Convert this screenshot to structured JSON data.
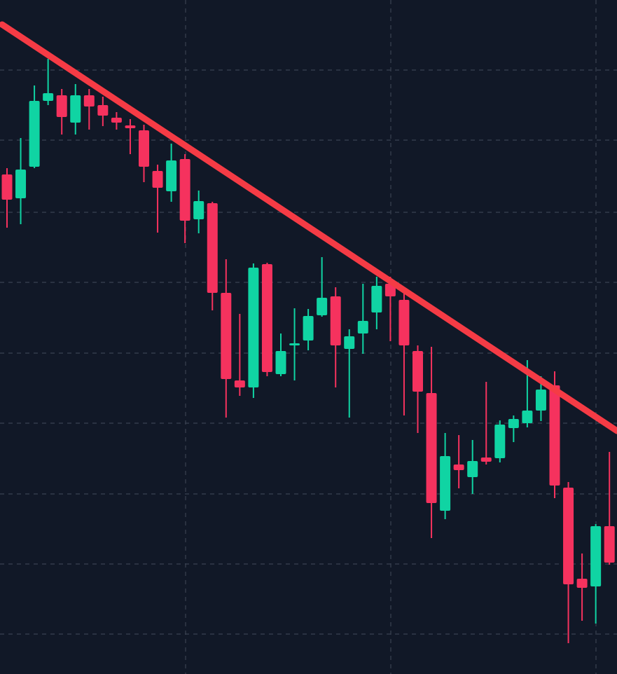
{
  "chart_data": {
    "type": "candlestick",
    "categories": [
      null,
      null,
      null,
      null,
      null,
      null,
      null,
      null,
      null,
      null,
      null,
      null,
      null,
      null,
      null,
      null,
      null,
      null,
      null,
      null,
      null,
      null,
      null,
      null,
      null,
      null,
      null,
      null,
      null,
      null,
      null,
      null,
      null,
      null,
      null,
      null,
      null,
      null,
      null,
      null,
      null,
      null,
      null,
      null,
      null
    ],
    "open": [
      713,
      679,
      724,
      818,
      826,
      787,
      826,
      812,
      794,
      783,
      776,
      718,
      689,
      735,
      649,
      672,
      544,
      419,
      409,
      585,
      428,
      469,
      476,
      512,
      539,
      464,
      486,
      516,
      557,
      534,
      461,
      401,
      233,
      299,
      281,
      309,
      308,
      351,
      358,
      376,
      412,
      266,
      136,
      125,
      211
    ],
    "high": [
      722,
      765,
      840,
      878,
      835,
      842,
      835,
      824,
      802,
      792,
      784,
      727,
      757,
      742,
      690,
      674,
      592,
      514,
      586,
      587,
      486,
      522,
      521,
      595,
      552,
      492,
      557,
      567,
      567,
      544,
      469,
      467,
      344,
      341,
      334,
      417,
      362,
      369,
      448,
      425,
      432,
      274,
      172,
      214,
      317
    ],
    "low": [
      637,
      642,
      722,
      812,
      770,
      770,
      777,
      782,
      777,
      742,
      702,
      630,
      674,
      615,
      629,
      519,
      366,
      397,
      394,
      425,
      425,
      419,
      462,
      510,
      409,
      366,
      457,
      492,
      475,
      369,
      344,
      194,
      221,
      265,
      257,
      299,
      302,
      331,
      352,
      361,
      251,
      44,
      76,
      72,
      156
    ],
    "close": [
      677,
      720,
      818,
      829,
      795,
      826,
      810,
      797,
      787,
      779,
      724,
      694,
      733,
      647,
      675,
      544,
      421,
      409,
      580,
      431,
      461,
      472,
      511,
      537,
      469,
      482,
      504,
      554,
      539,
      469,
      403,
      244,
      311,
      291,
      304,
      303,
      356,
      364,
      376,
      406,
      269,
      128,
      123,
      211,
      159
    ],
    "up_color": "#10d4a3",
    "down_color": "#f5325e",
    "ylim": [
      0,
      962
    ],
    "yticks": [
      57,
      157,
      257,
      358,
      458,
      559,
      659,
      762,
      862
    ],
    "grid": true
  }
}
